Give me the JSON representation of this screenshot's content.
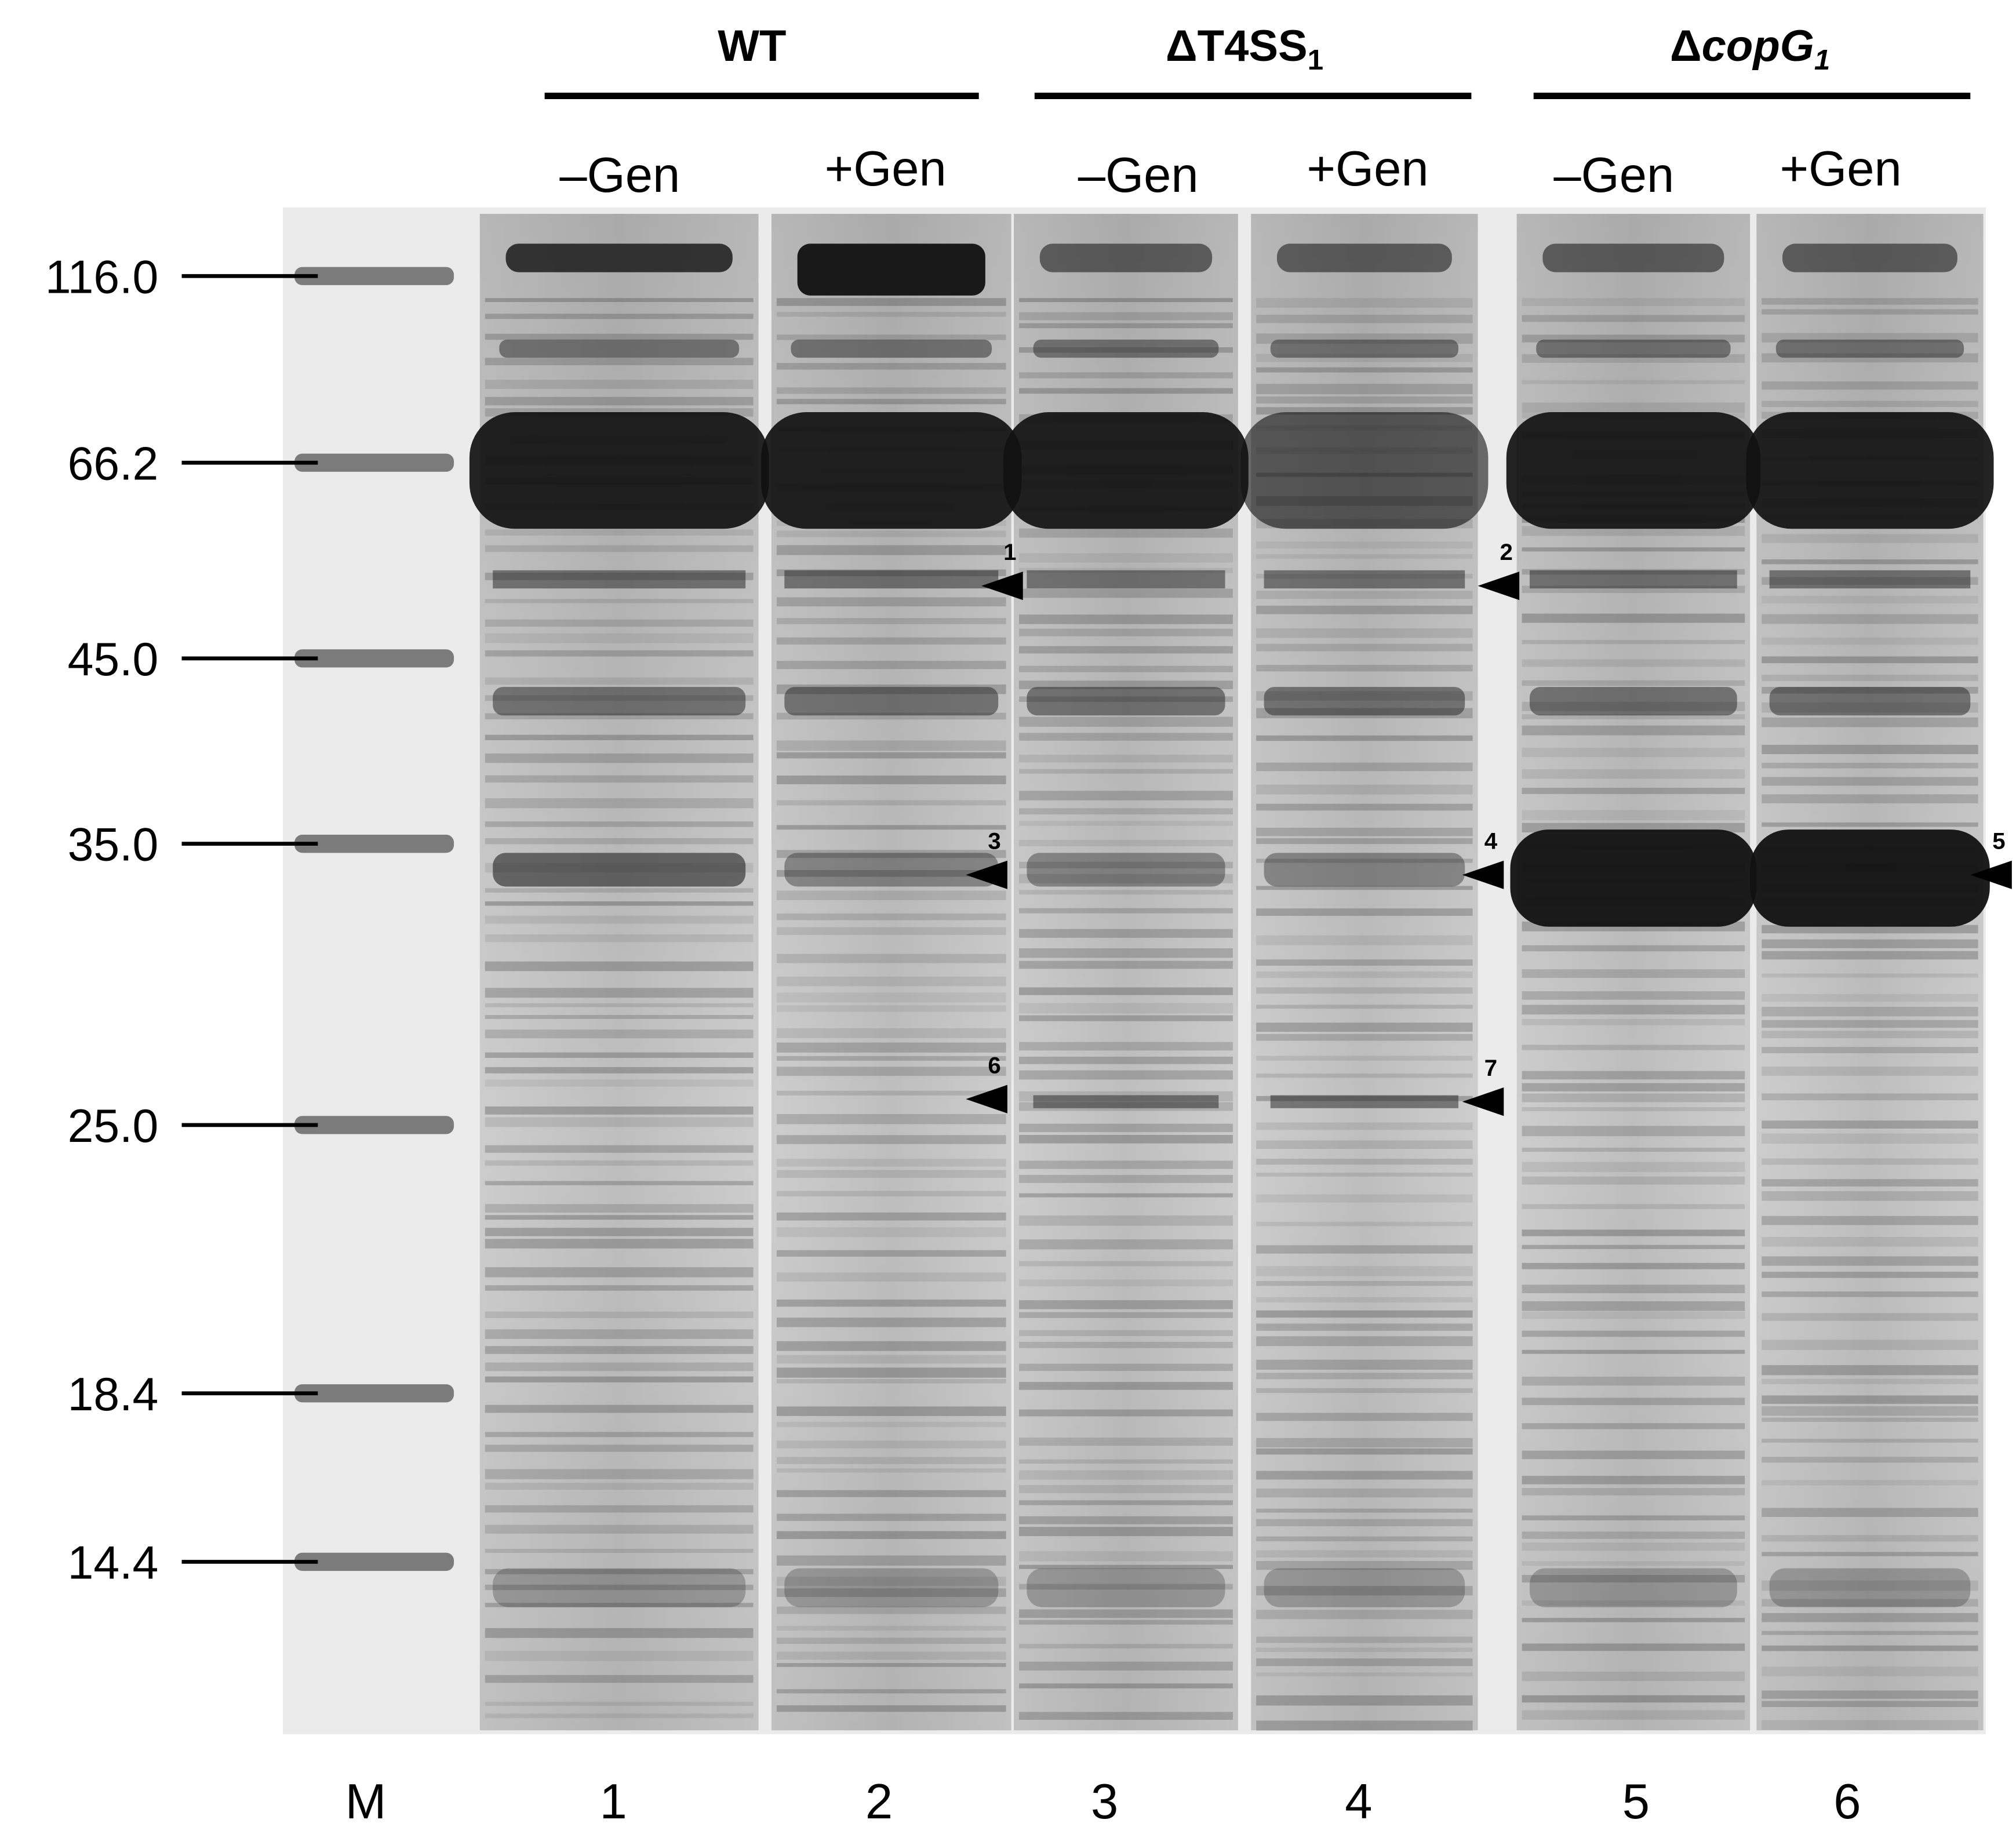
{
  "groups": [
    {
      "parts": [
        {
          "text": "WT"
        }
      ],
      "conditions": [
        "–Gen",
        "+Gen"
      ]
    },
    {
      "parts": [
        {
          "text": "ΔT4SS"
        },
        {
          "text": "1",
          "style": "sub"
        }
      ],
      "conditions": [
        "–Gen",
        "+Gen"
      ]
    },
    {
      "parts": [
        {
          "text": "Δ"
        },
        {
          "text": "copG",
          "style": "italic"
        },
        {
          "text": "1",
          "style": "sub-italic"
        }
      ],
      "conditions": [
        "–Gen",
        "+Gen"
      ]
    }
  ],
  "markers": [
    "116.0",
    "66.2",
    "45.0",
    "35.0",
    "25.0",
    "18.4",
    "14.4"
  ],
  "lanes": [
    "M",
    "1",
    "2",
    "3",
    "4",
    "5",
    "6"
  ],
  "arrows": [
    "1",
    "2",
    "3",
    "4",
    "5",
    "6",
    "7"
  ]
}
